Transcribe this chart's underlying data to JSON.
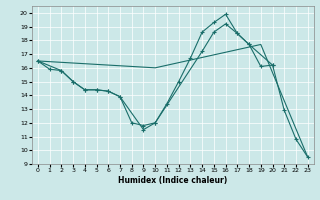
{
  "title": "",
  "xlabel": "Humidex (Indice chaleur)",
  "bg_color": "#cce8e8",
  "line_color": "#1a6e6a",
  "xlim": [
    -0.5,
    23.5
  ],
  "ylim": [
    9,
    20.5
  ],
  "yticks": [
    9,
    10,
    11,
    12,
    13,
    14,
    15,
    16,
    17,
    18,
    19,
    20
  ],
  "xticks": [
    0,
    1,
    2,
    3,
    4,
    5,
    6,
    7,
    8,
    9,
    10,
    11,
    12,
    13,
    14,
    15,
    16,
    17,
    18,
    19,
    20,
    21,
    22,
    23
  ],
  "line1_x": [
    0,
    1,
    2,
    3,
    4,
    5,
    6,
    7,
    8,
    9,
    10,
    11,
    12,
    13,
    14,
    15,
    16,
    17,
    18,
    19,
    20,
    21,
    22,
    23
  ],
  "line1_y": [
    16.5,
    15.9,
    15.8,
    15.0,
    14.4,
    14.4,
    14.3,
    13.9,
    12.0,
    11.8,
    12.0,
    13.4,
    15.0,
    16.7,
    18.6,
    19.3,
    19.9,
    18.5,
    17.7,
    16.1,
    16.2,
    12.9,
    10.8,
    9.5
  ],
  "line2_x": [
    0,
    2,
    3,
    4,
    5,
    6,
    7,
    9,
    10,
    14,
    15,
    16,
    17,
    18,
    20
  ],
  "line2_y": [
    16.5,
    15.8,
    15.0,
    14.4,
    14.4,
    14.3,
    13.9,
    11.5,
    12.0,
    17.2,
    18.6,
    19.2,
    18.5,
    17.7,
    16.2
  ],
  "line3_x": [
    0,
    10,
    19,
    23
  ],
  "line3_y": [
    16.5,
    16.0,
    17.7,
    9.5
  ]
}
